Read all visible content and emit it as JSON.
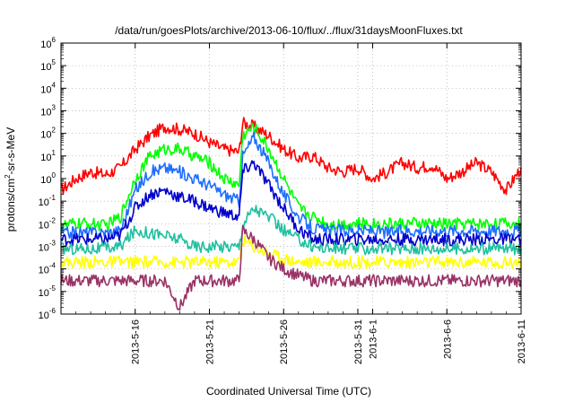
{
  "chart_data": {
    "type": "line",
    "title": "/data/run/goesPlots/archive/2013-06-10/flux/../flux/31daysMoonFluxes.txt",
    "xlabel": "Coordinated Universal Time (UTC)",
    "ylabel": "protons/cm2-sr-s-MeV",
    "ylabel_parts": {
      "pre": "protons/cm",
      "sup": "2",
      "post": "-sr-s-MeV"
    },
    "yscale": "log",
    "ylim_exp": [
      -6,
      6
    ],
    "xlim": [
      "2013-05-11",
      "2013-06-11"
    ],
    "grid": true,
    "x_ticks": [
      "2013-5-16",
      "2013-5-21",
      "2013-5-26",
      "2013-5-31",
      "2013-6-1",
      "2013-6-6",
      "2013-6-11"
    ],
    "series": [
      {
        "color": "#ff0000",
        "points": [
          [
            "2013-05-11",
            0.3
          ],
          [
            "2013-05-12",
            1
          ],
          [
            "2013-05-13",
            2
          ],
          [
            "2013-05-14",
            1.5
          ],
          [
            "2013-05-15",
            3
          ],
          [
            "2013-05-16",
            20
          ],
          [
            "2013-05-17",
            80
          ],
          [
            "2013-05-18",
            200
          ],
          [
            "2013-05-19",
            150
          ],
          [
            "2013-05-20",
            100
          ],
          [
            "2013-05-21",
            40
          ],
          [
            "2013-05-22",
            20
          ],
          [
            "2013-05-23",
            15
          ],
          [
            "2013-05-23T06:00",
            300
          ],
          [
            "2013-05-24",
            200
          ],
          [
            "2013-05-25",
            80
          ],
          [
            "2013-05-26",
            20
          ],
          [
            "2013-05-27",
            8
          ],
          [
            "2013-05-28",
            10
          ],
          [
            "2013-05-29",
            3
          ],
          [
            "2013-05-30",
            2
          ],
          [
            "2013-05-31",
            3
          ],
          [
            "2013-06-01",
            1
          ],
          [
            "2013-06-02",
            2
          ],
          [
            "2013-06-03",
            5
          ],
          [
            "2013-06-04",
            3
          ],
          [
            "2013-06-05",
            4
          ],
          [
            "2013-06-06",
            1
          ],
          [
            "2013-06-07",
            2
          ],
          [
            "2013-06-08",
            5
          ],
          [
            "2013-06-09",
            2
          ],
          [
            "2013-06-10",
            0.3
          ],
          [
            "2013-06-11",
            3
          ]
        ]
      },
      {
        "color": "#00ff00",
        "points": [
          [
            "2013-05-11",
            0.008
          ],
          [
            "2013-05-12",
            0.01
          ],
          [
            "2013-05-13",
            0.01
          ],
          [
            "2013-05-14",
            0.008
          ],
          [
            "2013-05-15",
            0.02
          ],
          [
            "2013-05-16",
            1
          ],
          [
            "2013-05-17",
            10
          ],
          [
            "2013-05-18",
            20
          ],
          [
            "2013-05-19",
            20
          ],
          [
            "2013-05-20",
            10
          ],
          [
            "2013-05-21",
            5
          ],
          [
            "2013-05-22",
            1
          ],
          [
            "2013-05-23",
            0.5
          ],
          [
            "2013-05-23T06:00",
            80
          ],
          [
            "2013-05-24",
            200
          ],
          [
            "2013-05-25",
            20
          ],
          [
            "2013-05-26",
            1
          ],
          [
            "2013-05-27",
            0.05
          ],
          [
            "2013-05-28",
            0.02
          ],
          [
            "2013-05-29",
            0.01
          ],
          [
            "2013-05-30",
            0.01
          ],
          [
            "2013-05-31",
            0.01
          ],
          [
            "2013-06-01",
            0.01
          ],
          [
            "2013-06-02",
            0.01
          ],
          [
            "2013-06-03",
            0.01
          ],
          [
            "2013-06-04",
            0.01
          ],
          [
            "2013-06-05",
            0.01
          ],
          [
            "2013-06-06",
            0.01
          ],
          [
            "2013-06-07",
            0.01
          ],
          [
            "2013-06-08",
            0.01
          ],
          [
            "2013-06-09",
            0.01
          ],
          [
            "2013-06-10",
            0.01
          ],
          [
            "2013-06-11",
            0.01
          ]
        ]
      },
      {
        "color": "#1e6eff",
        "points": [
          [
            "2013-05-11",
            0.004
          ],
          [
            "2013-05-12",
            0.004
          ],
          [
            "2013-05-13",
            0.004
          ],
          [
            "2013-05-14",
            0.004
          ],
          [
            "2013-05-15",
            0.005
          ],
          [
            "2013-05-16",
            0.3
          ],
          [
            "2013-05-17",
            2
          ],
          [
            "2013-05-18",
            3
          ],
          [
            "2013-05-19",
            2
          ],
          [
            "2013-05-20",
            1
          ],
          [
            "2013-05-21",
            0.5
          ],
          [
            "2013-05-22",
            0.2
          ],
          [
            "2013-05-23",
            0.1
          ],
          [
            "2013-05-23T06:00",
            10
          ],
          [
            "2013-05-24",
            70
          ],
          [
            "2013-05-25",
            5
          ],
          [
            "2013-05-26",
            0.2
          ],
          [
            "2013-05-27",
            0.02
          ],
          [
            "2013-05-28",
            0.006
          ],
          [
            "2013-05-29",
            0.005
          ],
          [
            "2013-05-30",
            0.005
          ],
          [
            "2013-05-31",
            0.005
          ],
          [
            "2013-06-01",
            0.005
          ],
          [
            "2013-06-02",
            0.004
          ],
          [
            "2013-06-03",
            0.005
          ],
          [
            "2013-06-04",
            0.005
          ],
          [
            "2013-06-05",
            0.005
          ],
          [
            "2013-06-06",
            0.005
          ],
          [
            "2013-06-07",
            0.005
          ],
          [
            "2013-06-08",
            0.005
          ],
          [
            "2013-06-09",
            0.005
          ],
          [
            "2013-06-10",
            0.005
          ],
          [
            "2013-06-11",
            0.005
          ]
        ]
      },
      {
        "color": "#0000cc",
        "points": [
          [
            "2013-05-11",
            0.002
          ],
          [
            "2013-05-12",
            0.002
          ],
          [
            "2013-05-13",
            0.002
          ],
          [
            "2013-05-14",
            0.002
          ],
          [
            "2013-05-15",
            0.003
          ],
          [
            "2013-05-16",
            0.05
          ],
          [
            "2013-05-17",
            0.2
          ],
          [
            "2013-05-18",
            0.3
          ],
          [
            "2013-05-19",
            0.15
          ],
          [
            "2013-05-20",
            0.1
          ],
          [
            "2013-05-21",
            0.05
          ],
          [
            "2013-05-22",
            0.03
          ],
          [
            "2013-05-23",
            0.02
          ],
          [
            "2013-05-23T06:00",
            2
          ],
          [
            "2013-05-24",
            5
          ],
          [
            "2013-05-25",
            0.5
          ],
          [
            "2013-05-26",
            0.05
          ],
          [
            "2013-05-27",
            0.006
          ],
          [
            "2013-05-28",
            0.002
          ],
          [
            "2013-05-29",
            0.002
          ],
          [
            "2013-05-30",
            0.002
          ],
          [
            "2013-05-31",
            0.002
          ],
          [
            "2013-06-01",
            0.002
          ],
          [
            "2013-06-02",
            0.002
          ],
          [
            "2013-06-03",
            0.002
          ],
          [
            "2013-06-04",
            0.002
          ],
          [
            "2013-06-05",
            0.002
          ],
          [
            "2013-06-06",
            0.002
          ],
          [
            "2013-06-07",
            0.002
          ],
          [
            "2013-06-08",
            0.002
          ],
          [
            "2013-06-09",
            0.002
          ],
          [
            "2013-06-10",
            0.002
          ],
          [
            "2013-06-11",
            0.002
          ]
        ]
      },
      {
        "color": "#20c0a0",
        "points": [
          [
            "2013-05-11",
            0.0008
          ],
          [
            "2013-05-12",
            0.0008
          ],
          [
            "2013-05-13",
            0.0008
          ],
          [
            "2013-05-14",
            0.0008
          ],
          [
            "2013-05-15",
            0.001
          ],
          [
            "2013-05-16",
            0.005
          ],
          [
            "2013-05-17",
            0.004
          ],
          [
            "2013-05-18",
            0.003
          ],
          [
            "2013-05-19",
            0.002
          ],
          [
            "2013-05-20",
            0.001
          ],
          [
            "2013-05-21",
            0.001
          ],
          [
            "2013-05-22",
            0.001
          ],
          [
            "2013-05-23",
            0.001
          ],
          [
            "2013-05-23T06:00",
            0.01
          ],
          [
            "2013-05-24",
            0.05
          ],
          [
            "2013-05-25",
            0.02
          ],
          [
            "2013-05-26",
            0.005
          ],
          [
            "2013-05-27",
            0.002
          ],
          [
            "2013-05-28",
            0.001
          ],
          [
            "2013-05-29",
            0.0008
          ],
          [
            "2013-05-30",
            0.0008
          ],
          [
            "2013-05-31",
            0.0008
          ],
          [
            "2013-06-01",
            0.0008
          ],
          [
            "2013-06-02",
            0.0008
          ],
          [
            "2013-06-03",
            0.0008
          ],
          [
            "2013-06-04",
            0.0008
          ],
          [
            "2013-06-05",
            0.0008
          ],
          [
            "2013-06-06",
            0.0008
          ],
          [
            "2013-06-07",
            0.0008
          ],
          [
            "2013-06-08",
            0.0008
          ],
          [
            "2013-06-09",
            0.0008
          ],
          [
            "2013-06-10",
            0.0008
          ],
          [
            "2013-06-11",
            0.0008
          ]
        ]
      },
      {
        "color": "#ffff00",
        "points": [
          [
            "2013-05-11",
            0.0002
          ],
          [
            "2013-05-12",
            0.0002
          ],
          [
            "2013-05-13",
            0.0002
          ],
          [
            "2013-05-14",
            0.0002
          ],
          [
            "2013-05-15",
            0.0002
          ],
          [
            "2013-05-16",
            0.0002
          ],
          [
            "2013-05-17",
            0.0002
          ],
          [
            "2013-05-18",
            0.0002
          ],
          [
            "2013-05-19",
            0.0002
          ],
          [
            "2013-05-20",
            0.0002
          ],
          [
            "2013-05-21",
            0.0002
          ],
          [
            "2013-05-22",
            0.0002
          ],
          [
            "2013-05-23",
            0.0002
          ],
          [
            "2013-05-23T06:00",
            0.002
          ],
          [
            "2013-05-24",
            0.001
          ],
          [
            "2013-05-25",
            0.0005
          ],
          [
            "2013-05-26",
            0.0003
          ],
          [
            "2013-05-27",
            0.0002
          ],
          [
            "2013-05-28",
            0.0002
          ],
          [
            "2013-05-29",
            0.0002
          ],
          [
            "2013-05-30",
            0.0002
          ],
          [
            "2013-05-31",
            0.0002
          ],
          [
            "2013-06-01",
            0.0002
          ],
          [
            "2013-06-02",
            0.0002
          ],
          [
            "2013-06-03",
            0.0002
          ],
          [
            "2013-06-04",
            0.0002
          ],
          [
            "2013-06-05",
            0.0002
          ],
          [
            "2013-06-06",
            0.0002
          ],
          [
            "2013-06-07",
            0.0002
          ],
          [
            "2013-06-08",
            0.0002
          ],
          [
            "2013-06-09",
            0.0002
          ],
          [
            "2013-06-10",
            0.0002
          ],
          [
            "2013-06-11",
            0.0002
          ]
        ]
      },
      {
        "color": "#993366",
        "points": [
          [
            "2013-05-11",
            3e-05
          ],
          [
            "2013-05-12",
            3e-05
          ],
          [
            "2013-05-13",
            3e-05
          ],
          [
            "2013-05-14",
            3e-05
          ],
          [
            "2013-05-15",
            3e-05
          ],
          [
            "2013-05-16",
            3e-05
          ],
          [
            "2013-05-17",
            3e-05
          ],
          [
            "2013-05-18",
            3e-05
          ],
          [
            "2013-05-19",
            2e-06
          ],
          [
            "2013-05-20",
            3e-05
          ],
          [
            "2013-05-21",
            3e-05
          ],
          [
            "2013-05-22",
            3e-05
          ],
          [
            "2013-05-23",
            3e-05
          ],
          [
            "2013-05-23T06:00",
            0.005
          ],
          [
            "2013-05-24",
            0.002
          ],
          [
            "2013-05-25",
            0.0003
          ],
          [
            "2013-05-26",
            0.0001
          ],
          [
            "2013-05-27",
            5e-05
          ],
          [
            "2013-05-28",
            3e-05
          ],
          [
            "2013-05-29",
            3e-05
          ],
          [
            "2013-05-30",
            3e-05
          ],
          [
            "2013-05-31",
            3e-05
          ],
          [
            "2013-06-01",
            3e-05
          ],
          [
            "2013-06-02",
            3e-05
          ],
          [
            "2013-06-03",
            3e-05
          ],
          [
            "2013-06-04",
            3e-05
          ],
          [
            "2013-06-05",
            3e-05
          ],
          [
            "2013-06-06",
            3e-05
          ],
          [
            "2013-06-07",
            3e-05
          ],
          [
            "2013-06-08",
            3e-05
          ],
          [
            "2013-06-09",
            3e-05
          ],
          [
            "2013-06-10",
            3e-05
          ],
          [
            "2013-06-11",
            3e-05
          ]
        ]
      }
    ]
  }
}
